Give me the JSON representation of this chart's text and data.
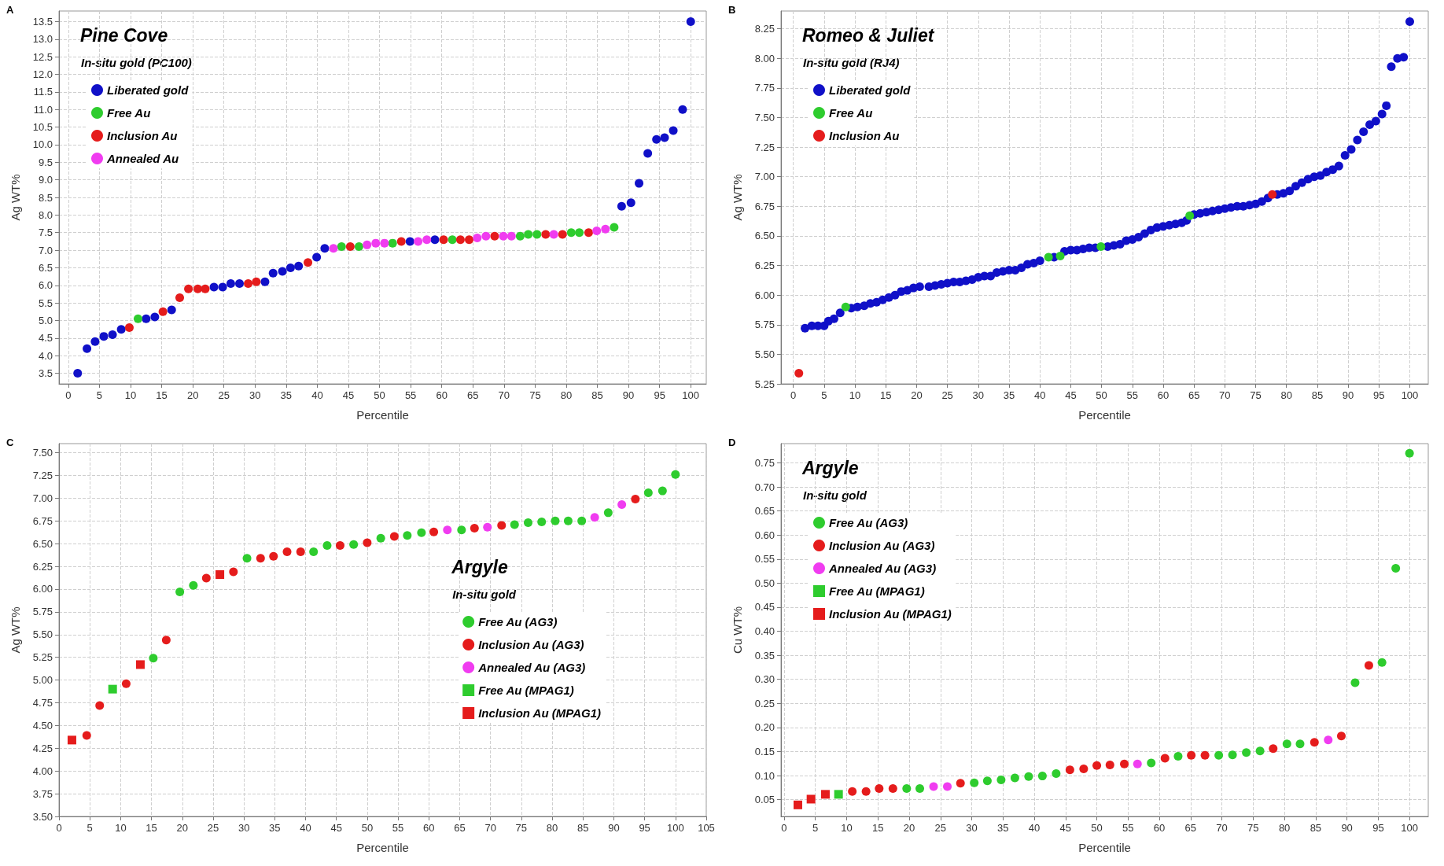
{
  "chart_data": [
    {
      "type": "scatter",
      "title": "Pine Cove",
      "legend_title": "In-situ gold (PC100)",
      "xlabel": "Percentile",
      "ylabel": "Ag WT%",
      "annotations": [
        "A"
      ],
      "grid": true,
      "legend": "top left",
      "xlim": [
        -1.5,
        102.5
      ],
      "ylim": [
        3.2,
        13.8
      ],
      "xticks": [
        0,
        5,
        10,
        15,
        20,
        25,
        30,
        35,
        40,
        45,
        50,
        55,
        60,
        65,
        70,
        75,
        80,
        85,
        90,
        95,
        100
      ],
      "yticks": [
        3.5,
        {
          "value": 4,
          "label": "4.0"
        },
        4.5,
        {
          "value": 5,
          "label": "5.0"
        },
        5.5,
        {
          "value": 6,
          "label": "6.0"
        },
        6.5,
        {
          "value": 7,
          "label": "7.0"
        },
        7.5,
        {
          "value": 8,
          "label": "8.0"
        },
        8.5,
        {
          "value": 9,
          "label": "9.0"
        },
        9.5,
        {
          "value": 10,
          "label": "10.0"
        },
        10.5,
        {
          "value": 11,
          "label": "11.0"
        },
        11.5,
        {
          "value": 12,
          "label": "12.0"
        },
        12.5,
        {
          "value": 13,
          "label": "13.0"
        },
        13.5
      ],
      "series": [
        {
          "name": "Liberated gold",
          "color": "#1010c8",
          "marker": "circle",
          "x": [
            1.5,
            3.0,
            4.3,
            5.7,
            7.1,
            8.5,
            12.5,
            13.9,
            16.6,
            23.4,
            24.8,
            26.1,
            27.5,
            31.6,
            32.9,
            34.4,
            35.7,
            37.0,
            39.9,
            41.2,
            54.9,
            58.9,
            88.9,
            90.4,
            91.7,
            93.1,
            94.5,
            95.8,
            97.2,
            98.7,
            100
          ],
          "values": [
            3.5,
            4.2,
            4.4,
            4.55,
            4.6,
            4.75,
            5.05,
            5.1,
            5.3,
            5.95,
            5.95,
            6.05,
            6.05,
            6.1,
            6.35,
            6.4,
            6.5,
            6.55,
            6.8,
            7.05,
            7.25,
            7.3,
            8.25,
            8.35,
            8.9,
            9.75,
            10.15,
            10.2,
            10.4,
            11.0,
            13.5
          ]
        },
        {
          "name": "Free Au",
          "color": "#2ecc2e",
          "marker": "circle",
          "x": [
            11.2,
            43.9,
            46.7,
            52.1,
            61.7,
            72.6,
            73.9,
            75.3,
            80.8,
            82.1,
            87.7
          ],
          "values": [
            5.05,
            7.1,
            7.1,
            7.2,
            7.3,
            7.4,
            7.45,
            7.45,
            7.5,
            7.5,
            7.65
          ]
        },
        {
          "name": "Inclusion Au",
          "color": "#e51c1c",
          "marker": "circle",
          "x": [
            9.8,
            15.2,
            17.9,
            19.3,
            20.8,
            22.0,
            28.9,
            30.2,
            38.5,
            45.3,
            53.5,
            60.3,
            63.0,
            64.4,
            68.5,
            76.7,
            79.4,
            83.6
          ],
          "values": [
            4.8,
            5.25,
            5.65,
            5.9,
            5.9,
            5.9,
            6.05,
            6.1,
            6.65,
            7.1,
            7.25,
            7.3,
            7.3,
            7.3,
            7.4,
            7.45,
            7.45,
            7.5
          ]
        },
        {
          "name": "Annealed Au",
          "color": "#f03cf0",
          "marker": "circle",
          "x": [
            42.6,
            48.0,
            49.4,
            50.8,
            56.2,
            57.6,
            65.7,
            67.1,
            69.9,
            71.2,
            78.0,
            84.9,
            86.3
          ],
          "values": [
            7.05,
            7.15,
            7.2,
            7.2,
            7.25,
            7.3,
            7.35,
            7.4,
            7.4,
            7.4,
            7.45,
            7.55,
            7.6
          ]
        }
      ]
    },
    {
      "type": "scatter",
      "title": "Romeo & Juliet",
      "legend_title": "In-situ gold (RJ4)",
      "xlabel": "Percentile",
      "ylabel": "Ag WT%",
      "annotations": [
        "B"
      ],
      "grid": true,
      "legend": "top left",
      "xlim": [
        -2,
        103
      ],
      "ylim": [
        5.25,
        8.4
      ],
      "xticks": [
        0,
        5,
        10,
        15,
        20,
        25,
        30,
        35,
        40,
        45,
        50,
        55,
        60,
        65,
        70,
        75,
        80,
        85,
        90,
        95,
        100
      ],
      "yticks": [
        5.25,
        {
          "value": 5.5,
          "label": "5.50"
        },
        5.75,
        {
          "value": 6,
          "label": "6.00"
        },
        6.25,
        {
          "value": 6.5,
          "label": "6.50"
        },
        6.75,
        {
          "value": 7,
          "label": "7.00"
        },
        7.25,
        {
          "value": 7.5,
          "label": "7.50"
        },
        7.75,
        {
          "value": 8,
          "label": "8.00"
        },
        8.25
      ],
      "series": [
        {
          "name": "Liberated gold",
          "color": "#1010c8",
          "marker": "circle",
          "x": [
            1.9,
            3,
            4,
            5,
            5.7,
            6.6,
            7.6,
            9.4,
            10.4,
            11.5,
            12.5,
            13.5,
            14.5,
            15.5,
            16.5,
            17.5,
            18.5,
            19.5,
            20.5,
            22,
            23,
            24,
            25,
            26,
            27,
            28,
            29,
            30,
            31,
            32,
            33,
            34,
            35,
            36,
            37,
            38,
            39,
            40,
            42.3,
            44,
            45,
            46,
            47,
            48,
            49,
            51,
            52,
            53,
            54,
            55,
            56,
            57,
            58,
            59,
            60,
            61,
            62,
            63,
            63.8,
            65,
            66,
            67,
            68,
            69,
            70,
            71,
            72,
            73,
            74,
            75,
            76,
            77,
            78.5,
            79.5,
            80.5,
            81.5,
            82.5,
            83.5,
            84.5,
            85.5,
            86.5,
            87.5,
            88.5,
            89.5,
            90.5,
            91.5,
            92.5,
            93.5,
            94.5,
            95.5,
            96.2,
            97,
            98,
            99,
            100
          ],
          "values": [
            5.72,
            5.74,
            5.74,
            5.74,
            5.78,
            5.8,
            5.85,
            5.89,
            5.9,
            5.91,
            5.93,
            5.94,
            5.96,
            5.98,
            6.0,
            6.03,
            6.04,
            6.06,
            6.07,
            6.07,
            6.08,
            6.09,
            6.1,
            6.11,
            6.11,
            6.12,
            6.13,
            6.15,
            6.16,
            6.16,
            6.19,
            6.2,
            6.21,
            6.21,
            6.23,
            6.26,
            6.27,
            6.29,
            6.32,
            6.37,
            6.38,
            6.38,
            6.39,
            6.4,
            6.4,
            6.41,
            6.42,
            6.43,
            6.46,
            6.47,
            6.49,
            6.52,
            6.55,
            6.57,
            6.58,
            6.59,
            6.6,
            6.61,
            6.63,
            6.68,
            6.69,
            6.7,
            6.71,
            6.72,
            6.73,
            6.74,
            6.75,
            6.75,
            6.76,
            6.77,
            6.79,
            6.82,
            6.85,
            6.86,
            6.88,
            6.92,
            6.95,
            6.98,
            7.0,
            7.01,
            7.04,
            7.06,
            7.09,
            7.18,
            7.23,
            7.31,
            7.38,
            7.44,
            7.47,
            7.53,
            7.6,
            7.93,
            8.0,
            8.01,
            8.31
          ]
        },
        {
          "name": "Free Au",
          "color": "#2ecc2e",
          "marker": "circle",
          "x": [
            8.5,
            41.4,
            43.3,
            49.9,
            64.3
          ],
          "values": [
            5.9,
            6.32,
            6.33,
            6.41,
            6.67
          ]
        },
        {
          "name": "Inclusion Au",
          "color": "#e51c1c",
          "marker": "circle",
          "x": [
            0.9,
            77.7
          ],
          "values": [
            5.34,
            6.85
          ]
        }
      ]
    },
    {
      "type": "scatter",
      "title": "Argyle",
      "legend_title": "In-situ gold",
      "xlabel": "Percentile",
      "ylabel": "Ag WT%",
      "annotations": [
        "C"
      ],
      "grid": true,
      "legend": "right",
      "xlim": [
        0,
        105
      ],
      "ylim": [
        3.5,
        7.6
      ],
      "xticks": [
        0,
        5,
        10,
        15,
        20,
        25,
        30,
        35,
        40,
        45,
        50,
        55,
        60,
        65,
        70,
        75,
        80,
        85,
        90,
        95,
        100,
        105
      ],
      "yticks": [
        {
          "value": 3.5,
          "label": "3.50"
        },
        3.75,
        {
          "value": 4,
          "label": "4.00"
        },
        4.25,
        {
          "value": 4.5,
          "label": "4.50"
        },
        4.75,
        {
          "value": 5,
          "label": "5.00"
        },
        5.25,
        {
          "value": 5.5,
          "label": "5.50"
        },
        5.75,
        {
          "value": 6,
          "label": "6.00"
        },
        6.25,
        {
          "value": 6.5,
          "label": "6.50"
        },
        6.75,
        {
          "value": 7,
          "label": "7.00"
        },
        7.25,
        {
          "value": 7.5,
          "label": "7.50"
        }
      ],
      "series": [
        {
          "name": "Free Au (AG3)",
          "color": "#2ecc2e",
          "marker": "circle",
          "x": [
            15.3,
            19.6,
            21.8,
            30.5,
            41.3,
            43.5,
            47.8,
            52.2,
            56.5,
            58.8,
            65.3,
            73.9,
            76.1,
            78.3,
            80.5,
            82.6,
            84.8,
            89.1,
            95.6,
            97.9,
            100
          ],
          "values": [
            5.24,
            5.97,
            6.04,
            6.34,
            6.41,
            6.48,
            6.49,
            6.56,
            6.59,
            6.62,
            6.65,
            6.71,
            6.73,
            6.74,
            6.75,
            6.75,
            6.75,
            6.84,
            7.06,
            7.08,
            7.26
          ]
        },
        {
          "name": "Inclusion Au (AG3)",
          "color": "#e51c1c",
          "marker": "circle",
          "x": [
            4.5,
            6.6,
            10.9,
            17.4,
            23.9,
            28.3,
            32.7,
            34.8,
            37.0,
            39.2,
            45.6,
            50.0,
            54.4,
            60.8,
            67.4,
            71.8,
            93.5
          ],
          "values": [
            4.39,
            4.72,
            4.96,
            5.44,
            6.12,
            6.19,
            6.34,
            6.36,
            6.41,
            6.41,
            6.48,
            6.51,
            6.58,
            6.63,
            6.67,
            6.7,
            6.99
          ]
        },
        {
          "name": "Annealed Au (AG3)",
          "color": "#f03cf0",
          "marker": "circle",
          "x": [
            63.0,
            69.5,
            86.9,
            91.3
          ],
          "values": [
            6.65,
            6.68,
            6.79,
            6.93
          ]
        },
        {
          "name": "Free Au (MPAG1)",
          "color": "#2ecc2e",
          "marker": "square",
          "x": [
            8.7
          ],
          "values": [
            4.9
          ]
        },
        {
          "name": "Inclusion Au (MPAG1)",
          "color": "#e51c1c",
          "marker": "square",
          "x": [
            2.1,
            13.2,
            26.1
          ],
          "values": [
            4.34,
            5.17,
            6.16
          ]
        }
      ]
    },
    {
      "type": "scatter",
      "title": "Argyle",
      "legend_title": "In-situ gold",
      "xlabel": "Percentile",
      "ylabel": "Cu WT%",
      "annotations": [
        "D"
      ],
      "grid": true,
      "legend": "top left",
      "xlim": [
        -0.5,
        103
      ],
      "ylim": [
        0.015,
        0.79
      ],
      "xticks": [
        0,
        5,
        10,
        15,
        20,
        25,
        30,
        35,
        40,
        45,
        50,
        55,
        60,
        65,
        70,
        75,
        80,
        85,
        90,
        95,
        100
      ],
      "yticks": [
        0.05,
        {
          "value": 0.1,
          "label": "0.10"
        },
        0.15,
        {
          "value": 0.2,
          "label": "0.20"
        },
        0.25,
        {
          "value": 0.3,
          "label": "0.30"
        },
        0.35,
        {
          "value": 0.4,
          "label": "0.40"
        },
        0.45,
        {
          "value": 0.5,
          "label": "0.50"
        },
        0.55,
        {
          "value": 0.6,
          "label": "0.60"
        },
        0.65,
        {
          "value": 0.7,
          "label": "0.70"
        },
        0.75
      ],
      "series": [
        {
          "name": "Free Au (AG3)",
          "color": "#2ecc2e",
          "marker": "circle",
          "x": [
            19.6,
            21.7,
            30.4,
            32.5,
            34.7,
            36.9,
            39.1,
            41.3,
            43.5,
            58.7,
            63.0,
            69.5,
            71.7,
            73.9,
            76.1,
            80.4,
            82.5,
            91.3,
            95.6,
            97.8,
            100
          ],
          "values": [
            0.073,
            0.073,
            0.085,
            0.089,
            0.091,
            0.095,
            0.098,
            0.099,
            0.104,
            0.126,
            0.14,
            0.142,
            0.143,
            0.148,
            0.151,
            0.166,
            0.166,
            0.293,
            0.335,
            0.531,
            0.77
          ]
        },
        {
          "name": "Inclusion Au (AG3)",
          "color": "#e51c1c",
          "marker": "circle",
          "x": [
            10.9,
            13.1,
            15.2,
            17.4,
            28.2,
            45.7,
            47.9,
            50.0,
            52.1,
            54.4,
            60.9,
            65.1,
            67.3,
            78.2,
            84.8,
            89.1,
            93.5
          ],
          "values": [
            0.067,
            0.067,
            0.073,
            0.073,
            0.084,
            0.112,
            0.114,
            0.121,
            0.122,
            0.124,
            0.136,
            0.142,
            0.142,
            0.156,
            0.169,
            0.182,
            0.329
          ]
        },
        {
          "name": "Annealed Au (AG3)",
          "color": "#f03cf0",
          "marker": "circle",
          "x": [
            23.9,
            26.1,
            56.5,
            87.0
          ],
          "values": [
            0.077,
            0.077,
            0.124,
            0.174
          ]
        },
        {
          "name": "Free Au (MPAG1)",
          "color": "#2ecc2e",
          "marker": "square",
          "x": [
            8.7
          ],
          "values": [
            0.061
          ]
        },
        {
          "name": "Inclusion Au (MPAG1)",
          "color": "#e51c1c",
          "marker": "square",
          "x": [
            2.2,
            4.3,
            6.6
          ],
          "values": [
            0.039,
            0.051,
            0.061
          ]
        }
      ]
    }
  ]
}
